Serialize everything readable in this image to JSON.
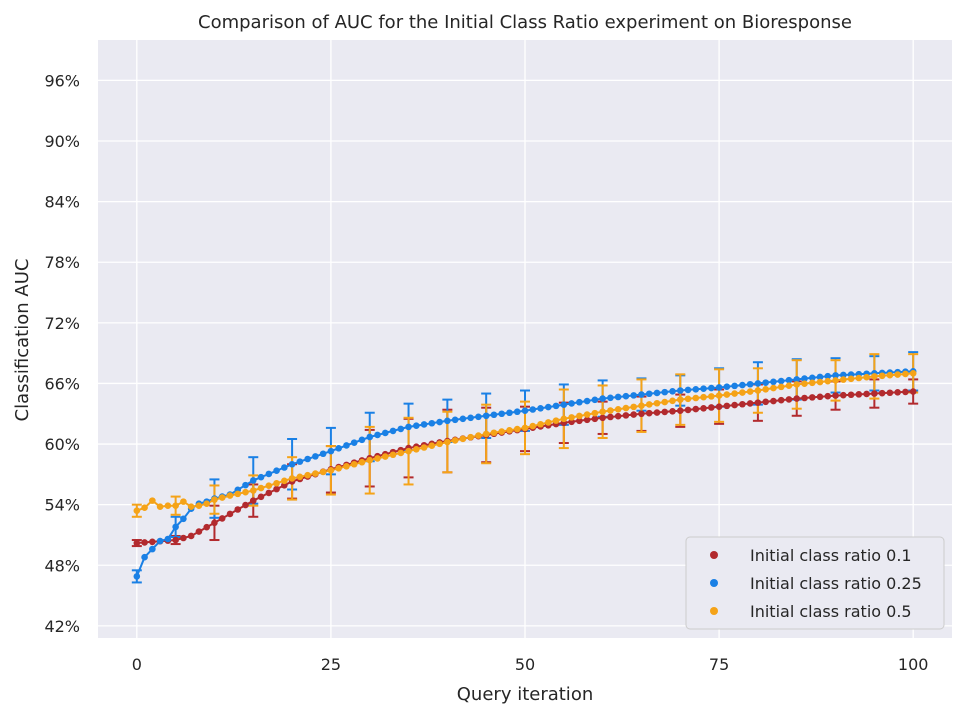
{
  "chart_data": {
    "type": "line",
    "title": "Comparison of AUC for the Initial Class Ratio experiment on Bioresponse",
    "xlabel": "Query iteration",
    "ylabel": "Classification AUC",
    "xlim": [
      -5,
      105
    ],
    "ylim": [
      40.8,
      100.0
    ],
    "x_ticks": [
      0,
      25,
      50,
      75,
      100
    ],
    "x_tick_labels": [
      "0",
      "25",
      "50",
      "75",
      "100"
    ],
    "y_ticks": [
      42,
      48,
      54,
      60,
      66,
      72,
      78,
      84,
      90,
      96
    ],
    "y_tick_labels": [
      "42%",
      "48%",
      "54%",
      "60%",
      "66%",
      "72%",
      "78%",
      "84%",
      "90%",
      "96%"
    ],
    "grid": true,
    "legend_position": "lower-right",
    "background": "#eaeaf2",
    "x": [
      0,
      1,
      2,
      3,
      4,
      5,
      6,
      7,
      8,
      9,
      10,
      11,
      12,
      13,
      14,
      15,
      16,
      17,
      18,
      19,
      20,
      21,
      22,
      23,
      24,
      25,
      26,
      27,
      28,
      29,
      30,
      31,
      32,
      33,
      34,
      35,
      36,
      37,
      38,
      39,
      40,
      41,
      42,
      43,
      44,
      45,
      46,
      47,
      48,
      49,
      50,
      51,
      52,
      53,
      54,
      55,
      56,
      57,
      58,
      59,
      60,
      61,
      62,
      63,
      64,
      65,
      66,
      67,
      68,
      69,
      70,
      71,
      72,
      73,
      74,
      75,
      76,
      77,
      78,
      79,
      80,
      81,
      82,
      83,
      84,
      85,
      86,
      87,
      88,
      89,
      90,
      91,
      92,
      93,
      94,
      95,
      96,
      97,
      98,
      99,
      100
    ],
    "series": [
      {
        "name": "Initial class ratio 0.1",
        "color": "#b22a2e",
        "anchors": [
          [
            0,
            50.2
          ],
          [
            5,
            50.5
          ],
          [
            7,
            50.9
          ],
          [
            10,
            52.2
          ],
          [
            15,
            54.4
          ],
          [
            20,
            56.3
          ],
          [
            25,
            57.5
          ],
          [
            30,
            58.6
          ],
          [
            35,
            59.6
          ],
          [
            40,
            60.3
          ],
          [
            45,
            60.9
          ],
          [
            50,
            61.5
          ],
          [
            55,
            62.1
          ],
          [
            60,
            62.6
          ],
          [
            65,
            63.0
          ],
          [
            70,
            63.3
          ],
          [
            75,
            63.7
          ],
          [
            80,
            64.1
          ],
          [
            85,
            64.5
          ],
          [
            90,
            64.8
          ],
          [
            95,
            65.0
          ],
          [
            100,
            65.2
          ]
        ],
        "error_x": [
          0,
          5,
          10,
          15,
          20,
          25,
          30,
          35,
          40,
          45,
          50,
          55,
          60,
          65,
          70,
          75,
          80,
          85,
          90,
          95,
          100
        ],
        "error": [
          0.3,
          0.4,
          1.7,
          1.6,
          1.7,
          2.3,
          2.8,
          2.9,
          3.1,
          2.7,
          2.2,
          2.0,
          1.6,
          1.7,
          1.6,
          1.7,
          1.8,
          1.7,
          1.4,
          1.4,
          1.2
        ]
      },
      {
        "name": "Initial class ratio 0.25",
        "color": "#1a80e5",
        "anchors": [
          [
            0,
            46.9
          ],
          [
            1,
            48.8
          ],
          [
            2,
            49.6
          ],
          [
            3,
            50.4
          ],
          [
            4,
            50.6
          ],
          [
            5,
            51.8
          ],
          [
            6,
            52.6
          ],
          [
            7,
            53.6
          ],
          [
            8,
            54.1
          ],
          [
            9,
            54.3
          ],
          [
            10,
            54.6
          ],
          [
            12,
            55.0
          ],
          [
            15,
            56.4
          ],
          [
            20,
            58.0
          ],
          [
            25,
            59.3
          ],
          [
            30,
            60.7
          ],
          [
            35,
            61.7
          ],
          [
            40,
            62.3
          ],
          [
            45,
            62.8
          ],
          [
            50,
            63.3
          ],
          [
            55,
            63.9
          ],
          [
            60,
            64.5
          ],
          [
            65,
            64.9
          ],
          [
            70,
            65.3
          ],
          [
            75,
            65.6
          ],
          [
            80,
            66.0
          ],
          [
            85,
            66.4
          ],
          [
            90,
            66.8
          ],
          [
            95,
            67.0
          ],
          [
            100,
            67.2
          ]
        ],
        "error_x": [
          0,
          5,
          10,
          15,
          20,
          25,
          30,
          35,
          40,
          45,
          50,
          55,
          60,
          65,
          70,
          75,
          80,
          85,
          90,
          95,
          100
        ],
        "error": [
          0.6,
          1.0,
          1.9,
          2.3,
          2.5,
          2.3,
          2.4,
          2.3,
          2.1,
          2.2,
          2.0,
          2.0,
          1.8,
          1.6,
          1.5,
          1.9,
          2.1,
          2.0,
          1.7,
          1.7,
          1.9
        ]
      },
      {
        "name": "Initial class ratio 0.5",
        "color": "#f5a318",
        "anchors": [
          [
            0,
            53.4
          ],
          [
            1,
            53.7
          ],
          [
            2,
            54.4
          ],
          [
            3,
            53.8
          ],
          [
            4,
            53.9
          ],
          [
            5,
            53.9
          ],
          [
            6,
            54.3
          ],
          [
            7,
            53.8
          ],
          [
            8,
            53.9
          ],
          [
            9,
            54.1
          ],
          [
            10,
            54.5
          ],
          [
            12,
            54.9
          ],
          [
            15,
            55.4
          ],
          [
            20,
            56.6
          ],
          [
            25,
            57.4
          ],
          [
            30,
            58.4
          ],
          [
            35,
            59.3
          ],
          [
            40,
            60.2
          ],
          [
            45,
            61.0
          ],
          [
            50,
            61.6
          ],
          [
            55,
            62.5
          ],
          [
            60,
            63.2
          ],
          [
            65,
            63.8
          ],
          [
            70,
            64.4
          ],
          [
            75,
            64.8
          ],
          [
            80,
            65.3
          ],
          [
            85,
            65.9
          ],
          [
            90,
            66.3
          ],
          [
            95,
            66.7
          ],
          [
            100,
            67.0
          ]
        ],
        "error_x": [
          0,
          5,
          10,
          15,
          20,
          25,
          30,
          35,
          40,
          45,
          50,
          55,
          60,
          65,
          70,
          75,
          80,
          85,
          90,
          95,
          100
        ],
        "error": [
          0.6,
          0.9,
          1.4,
          1.5,
          2.1,
          2.4,
          3.3,
          3.3,
          3.0,
          2.9,
          2.6,
          2.9,
          2.6,
          2.6,
          2.5,
          2.6,
          2.2,
          2.4,
          2.0,
          2.2,
          1.9
        ]
      }
    ]
  }
}
